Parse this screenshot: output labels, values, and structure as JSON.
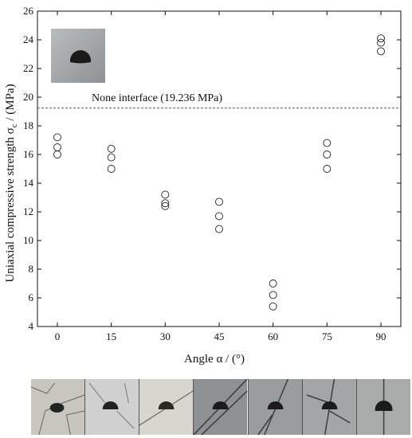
{
  "chart_data": {
    "type": "scatter",
    "xlabel": "Angle α / (°)",
    "ylabel_main": "Uniaxial compressive strength σ",
    "ylabel_sub": "c",
    "ylabel_unit": " / (MPa)",
    "x_categories": [
      "0",
      "15",
      "30",
      "45",
      "60",
      "75",
      "90"
    ],
    "ylim": [
      4,
      26
    ],
    "yticks": [
      4,
      6,
      8,
      10,
      12,
      14,
      16,
      18,
      20,
      22,
      24,
      26
    ],
    "reference_line": {
      "value": 19.236,
      "label": "None interface (19.236 MPa)"
    },
    "series": [
      {
        "marker": "open-circle",
        "points": [
          {
            "x": "0",
            "y": 17.2
          },
          {
            "x": "0",
            "y": 16.5
          },
          {
            "x": "0",
            "y": 16.0
          },
          {
            "x": "15",
            "y": 16.4
          },
          {
            "x": "15",
            "y": 15.8
          },
          {
            "x": "15",
            "y": 15.0
          },
          {
            "x": "30",
            "y": 13.2
          },
          {
            "x": "30",
            "y": 12.6
          },
          {
            "x": "30",
            "y": 12.4
          },
          {
            "x": "45",
            "y": 12.7
          },
          {
            "x": "45",
            "y": 11.7
          },
          {
            "x": "45",
            "y": 10.8
          },
          {
            "x": "60",
            "y": 7.0
          },
          {
            "x": "60",
            "y": 6.2
          },
          {
            "x": "60",
            "y": 5.4
          },
          {
            "x": "75",
            "y": 16.8
          },
          {
            "x": "75",
            "y": 16.0
          },
          {
            "x": "75",
            "y": 15.0
          },
          {
            "x": "90",
            "y": 24.1
          },
          {
            "x": "90",
            "y": 23.8
          },
          {
            "x": "90",
            "y": 23.2
          }
        ]
      }
    ],
    "grid": false
  },
  "photos": {
    "inset": {
      "subject": "intact specimen with semicircular hole"
    },
    "strip": [
      {
        "angle": "0",
        "subject": "failed specimen"
      },
      {
        "angle": "15",
        "subject": "failed specimen"
      },
      {
        "angle": "30",
        "subject": "failed specimen"
      },
      {
        "angle": "45",
        "subject": "failed specimen"
      },
      {
        "angle": "60",
        "subject": "failed specimen"
      },
      {
        "angle": "75",
        "subject": "failed specimen"
      },
      {
        "angle": "90",
        "subject": "failed specimen"
      }
    ]
  }
}
